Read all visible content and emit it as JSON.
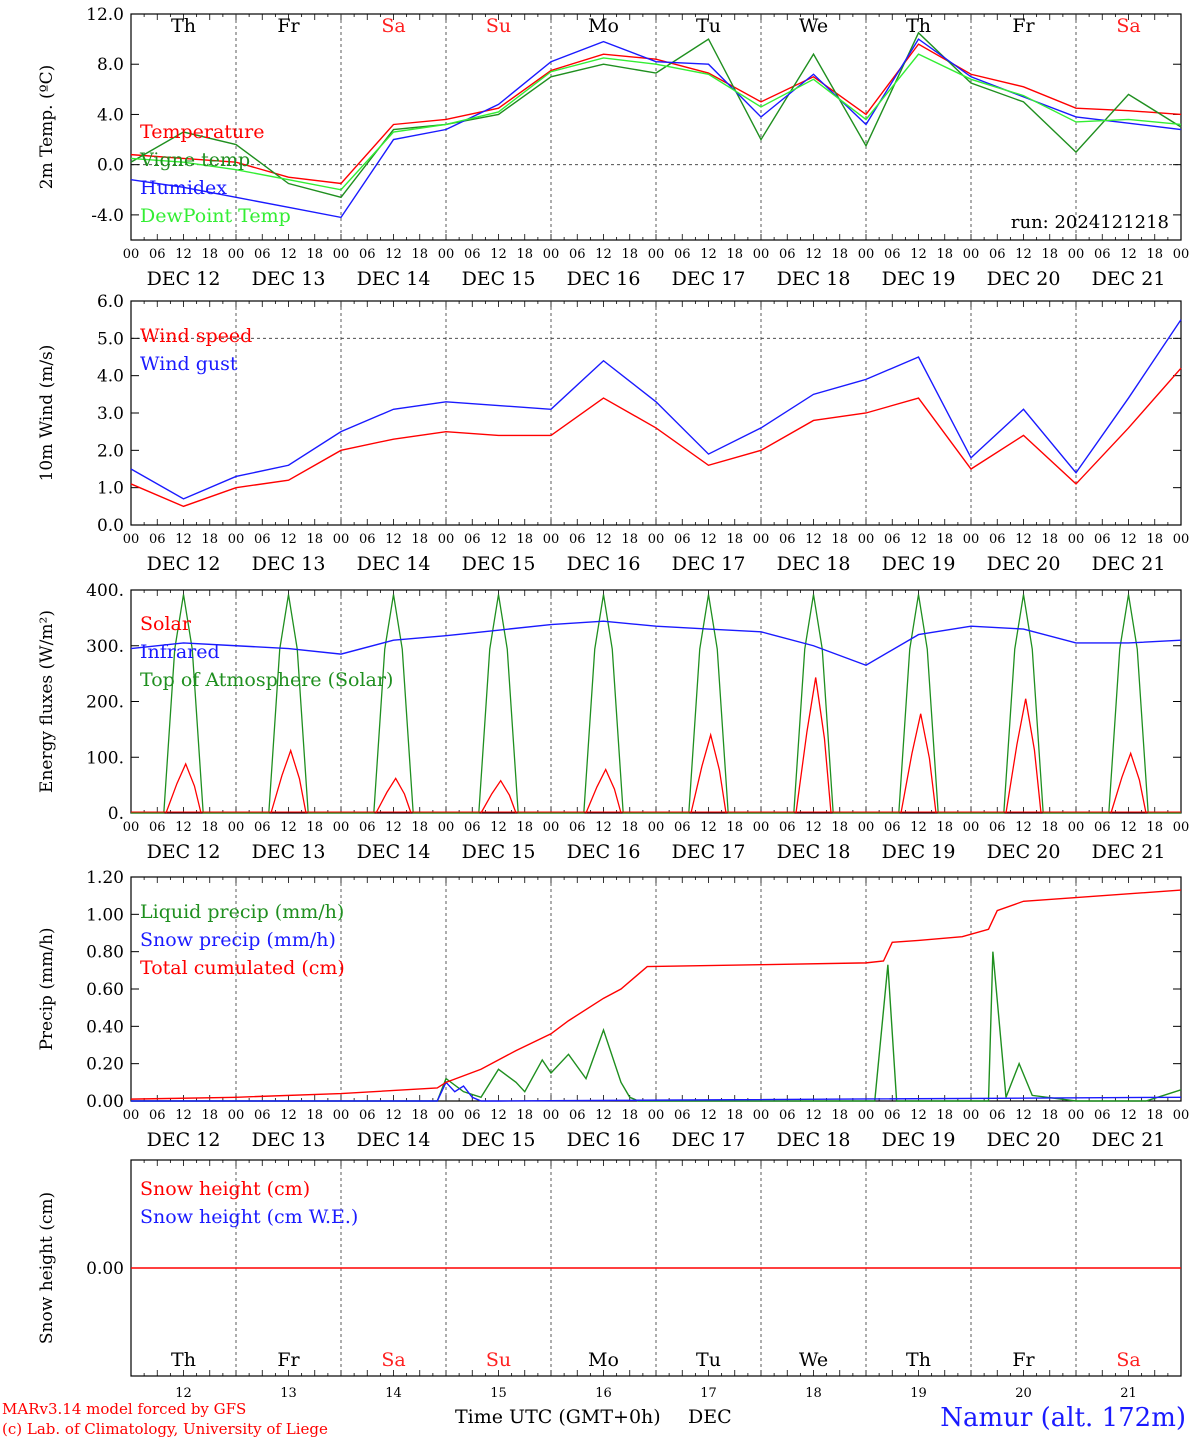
{
  "days": [
    "12",
    "13",
    "14",
    "15",
    "16",
    "17",
    "18",
    "19",
    "20",
    "21"
  ],
  "day_names": [
    "Th",
    "Fr",
    "Sa",
    "Su",
    "Mo",
    "Tu",
    "We",
    "Th",
    "Fr",
    "Sa"
  ],
  "weekend_flags": [
    false,
    false,
    true,
    true,
    false,
    false,
    false,
    false,
    false,
    true
  ],
  "hour_ticks": [
    "00",
    "06",
    "12",
    "18"
  ],
  "final_hour_tick": "00",
  "month": "DEC",
  "colors": {
    "red": "#ff0000",
    "darkgreen": "#1f8f1f",
    "blue": "#1a1aff",
    "lightgreen": "#33ee33",
    "weekend": "#ff2020"
  },
  "footer": {
    "model_note": "MARv3.14 model forced by GFS",
    "credit": "(c) Lab. of Climatology, University of Liege",
    "xlabel": "Time UTC (GMT+0h)",
    "month": "DEC",
    "station": "Namur (alt. 172m)"
  },
  "chart_data": [
    {
      "type": "line",
      "ylabel": "2m Temp. (ºC)",
      "ylim": [
        -6,
        12
      ],
      "yticks": [
        "12.0",
        "8.0",
        "4.0",
        "0.0",
        "-4.0"
      ],
      "ytick_values": [
        12,
        8,
        4,
        0,
        -4
      ],
      "dashed_y": [
        0
      ],
      "show_day_names": true,
      "annotation": "run: 2024121218",
      "x_unit": "hours since DEC 12 00 UTC",
      "series": [
        {
          "name": "Temperature",
          "color": "#ff0000",
          "x": [
            0,
            12,
            24,
            36,
            48,
            60,
            72,
            84,
            96,
            108,
            120,
            132,
            144,
            156,
            168,
            180,
            192,
            204,
            216,
            228,
            240
          ],
          "y": [
            0.8,
            0.5,
            0.2,
            -1.0,
            -1.5,
            3.2,
            3.6,
            4.5,
            7.5,
            8.8,
            8.4,
            7.3,
            5.0,
            7.0,
            4.0,
            9.6,
            7.2,
            6.2,
            4.5,
            4.3,
            4.0
          ]
        },
        {
          "name": "Vigne temp",
          "color": "#1f8f1f",
          "x": [
            0,
            12,
            24,
            36,
            48,
            60,
            72,
            84,
            96,
            108,
            120,
            132,
            144,
            156,
            168,
            180,
            192,
            204,
            216,
            228,
            240
          ],
          "y": [
            0.2,
            2.6,
            1.6,
            -1.5,
            -2.6,
            2.8,
            3.2,
            4.0,
            7.0,
            8.0,
            7.3,
            10.0,
            2.0,
            8.8,
            1.5,
            10.5,
            6.5,
            5.0,
            1.0,
            5.6,
            3.0
          ]
        },
        {
          "name": "Humidex",
          "color": "#1a1aff",
          "x": [
            0,
            12,
            24,
            36,
            48,
            60,
            72,
            84,
            96,
            108,
            120,
            132,
            144,
            156,
            168,
            180,
            192,
            204,
            216,
            228,
            240
          ],
          "y": [
            -1.2,
            -1.8,
            -2.6,
            -3.4,
            -4.2,
            2.0,
            2.8,
            4.8,
            8.2,
            9.8,
            8.2,
            8.0,
            3.8,
            7.2,
            3.2,
            10.0,
            7.0,
            5.4,
            3.8,
            3.3,
            2.8
          ]
        },
        {
          "name": "DewPoint Temp",
          "color": "#33ee33",
          "x": [
            0,
            12,
            24,
            36,
            48,
            60,
            72,
            84,
            96,
            108,
            120,
            132,
            144,
            156,
            168,
            180,
            192,
            204,
            216,
            228,
            240
          ],
          "y": [
            0.5,
            0.2,
            -0.4,
            -1.2,
            -2.0,
            2.6,
            3.2,
            4.2,
            7.4,
            8.5,
            8.0,
            7.2,
            4.6,
            6.8,
            3.6,
            8.8,
            6.8,
            5.5,
            3.4,
            3.6,
            3.2
          ]
        }
      ]
    },
    {
      "type": "line",
      "ylabel": "10m Wind (m/s)",
      "ylim": [
        0,
        6
      ],
      "yticks": [
        "6.0",
        "5.0",
        "4.0",
        "3.0",
        "2.0",
        "1.0",
        "0.0"
      ],
      "ytick_values": [
        6,
        5,
        4,
        3,
        2,
        1,
        0
      ],
      "dashed_y": [
        5
      ],
      "show_day_names": false,
      "series": [
        {
          "name": "Wind speed",
          "color": "#ff0000",
          "x": [
            0,
            12,
            24,
            36,
            48,
            60,
            72,
            84,
            96,
            108,
            120,
            132,
            144,
            156,
            168,
            180,
            192,
            204,
            216,
            228,
            240
          ],
          "y": [
            1.1,
            0.5,
            1.0,
            1.2,
            2.0,
            2.3,
            2.5,
            2.4,
            2.4,
            3.4,
            2.6,
            1.6,
            2.0,
            2.8,
            3.0,
            3.4,
            1.5,
            2.4,
            1.1,
            2.6,
            4.2
          ]
        },
        {
          "name": "Wind gust",
          "color": "#1a1aff",
          "x": [
            0,
            12,
            24,
            36,
            48,
            60,
            72,
            84,
            96,
            108,
            120,
            132,
            144,
            156,
            168,
            180,
            192,
            204,
            216,
            228,
            240
          ],
          "y": [
            1.5,
            0.7,
            1.3,
            1.6,
            2.5,
            3.1,
            3.3,
            3.2,
            3.1,
            4.4,
            3.3,
            1.9,
            2.6,
            3.5,
            3.9,
            4.5,
            1.8,
            3.1,
            1.4,
            3.4,
            5.5
          ]
        }
      ]
    },
    {
      "type": "line",
      "ylabel": "Energy fluxes (W/m²)",
      "ylim": [
        0,
        400
      ],
      "yticks": [
        "400.",
        "300.",
        "200.",
        "100.",
        "0."
      ],
      "ytick_values": [
        400,
        300,
        200,
        100,
        0
      ],
      "dashed_y": [],
      "show_day_names": false,
      "daily_solar_peaks": [
        88,
        112,
        62,
        58,
        78,
        140,
        243,
        178,
        205,
        107
      ],
      "top_of_atmosphere_peak": 392,
      "series": [
        {
          "name": "Solar",
          "color": "#ff0000"
        },
        {
          "name": "Infrared",
          "color": "#1a1aff",
          "x": [
            0,
            12,
            24,
            36,
            48,
            60,
            72,
            84,
            96,
            108,
            120,
            132,
            144,
            156,
            168,
            180,
            192,
            204,
            216,
            228,
            240
          ],
          "y": [
            295,
            305,
            300,
            295,
            285,
            310,
            318,
            328,
            338,
            344,
            335,
            330,
            325,
            300,
            265,
            320,
            335,
            330,
            305,
            305,
            310
          ]
        },
        {
          "name": "Top of Atmosphere (Solar)",
          "color": "#1f8f1f"
        }
      ]
    },
    {
      "type": "line",
      "ylabel": "Precip (mm/h)",
      "ylim": [
        0,
        1.2
      ],
      "yticks": [
        "1.20",
        "1.00",
        "0.80",
        "0.60",
        "0.40",
        "0.20",
        "0.00"
      ],
      "ytick_values": [
        1.2,
        1.0,
        0.8,
        0.6,
        0.4,
        0.2,
        0
      ],
      "dashed_y": [],
      "show_day_names": false,
      "series": [
        {
          "name": "Liquid precip (mm/h)",
          "color": "#1f8f1f",
          "x": [
            0,
            70,
            72,
            76,
            80,
            84,
            88,
            90,
            94,
            96,
            100,
            104,
            108,
            112,
            114,
            116,
            118,
            120,
            130,
            140,
            170,
            173,
            175,
            180,
            196,
            197,
            200,
            203,
            206,
            216,
            232,
            240
          ],
          "y": [
            0,
            0,
            0.12,
            0.05,
            0.02,
            0.17,
            0.1,
            0.05,
            0.22,
            0.15,
            0.25,
            0.12,
            0.38,
            0.1,
            0.02,
            0,
            0,
            0,
            0,
            0,
            0,
            0.73,
            0,
            0,
            0,
            0.8,
            0.02,
            0.2,
            0.03,
            0,
            0,
            0.06
          ]
        },
        {
          "name": "Snow precip (mm/h)",
          "color": "#1a1aff",
          "x": [
            0,
            70,
            72,
            74,
            76,
            78,
            80,
            84,
            240
          ],
          "y": [
            0,
            0,
            0.1,
            0.05,
            0.08,
            0.02,
            0,
            0,
            0.02
          ]
        },
        {
          "name": "Total cumulated (cm)",
          "color": "#ff0000",
          "x": [
            0,
            24,
            48,
            70,
            72,
            80,
            88,
            96,
            100,
            108,
            112,
            118,
            144,
            168,
            172,
            174,
            180,
            190,
            196,
            198,
            204,
            216,
            240
          ],
          "y": [
            0.01,
            0.02,
            0.04,
            0.07,
            0.1,
            0.17,
            0.27,
            0.36,
            0.43,
            0.55,
            0.6,
            0.72,
            0.73,
            0.74,
            0.75,
            0.85,
            0.86,
            0.88,
            0.92,
            1.02,
            1.07,
            1.09,
            1.13
          ]
        }
      ]
    },
    {
      "type": "line",
      "ylabel": "Snow height (cm)",
      "ylim": [
        -1,
        1
      ],
      "yticks": [
        "0.00"
      ],
      "ytick_values": [
        0
      ],
      "dashed_y": [],
      "show_day_names": true,
      "day_names_at_bottom": true,
      "series": [
        {
          "name": "Snow height (cm)",
          "color": "#ff0000",
          "x": [
            0,
            240
          ],
          "y": [
            0,
            0
          ]
        },
        {
          "name": "Snow height (cm W.E.)",
          "color": "#1a1aff"
        }
      ]
    }
  ]
}
